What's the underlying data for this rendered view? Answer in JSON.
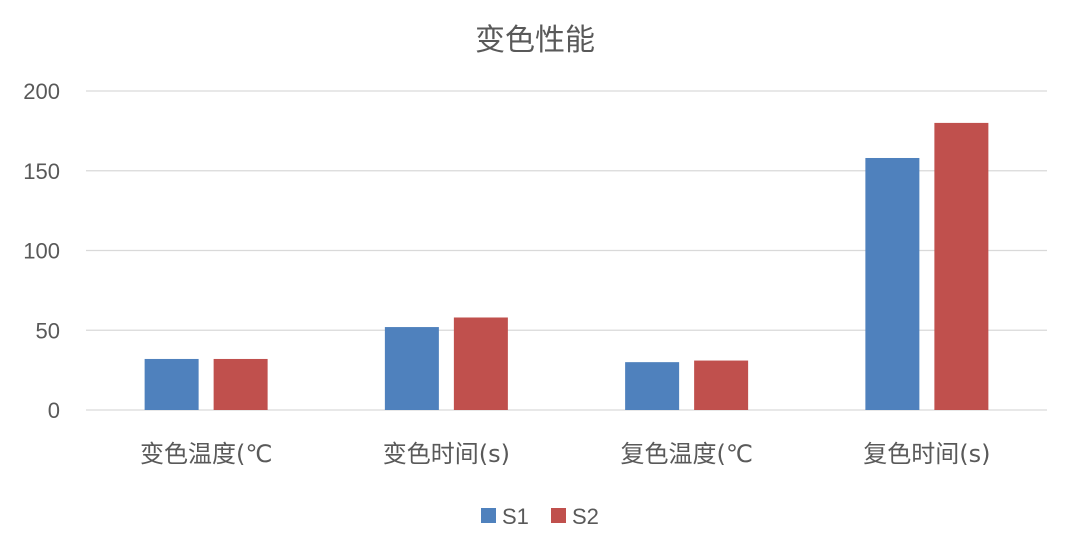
{
  "chart_data": {
    "type": "bar",
    "title": "变色性能",
    "categories": [
      "变色温度(℃",
      "变色时间(s)",
      "复色温度(℃",
      "复色时间(s)"
    ],
    "series": [
      {
        "name": "S1",
        "values": [
          32,
          52,
          30,
          158
        ],
        "color": "#4F81BD"
      },
      {
        "name": "S2",
        "values": [
          32,
          58,
          31,
          180
        ],
        "color": "#C0504D"
      }
    ],
    "ylim": [
      0,
      200
    ],
    "yticks": [
      0,
      50,
      100,
      150,
      200
    ],
    "grid": true,
    "legend": "bottom",
    "xlabel": "",
    "ylabel": ""
  },
  "colors": {
    "text": "#595959",
    "grid": "#D9D9D9"
  }
}
